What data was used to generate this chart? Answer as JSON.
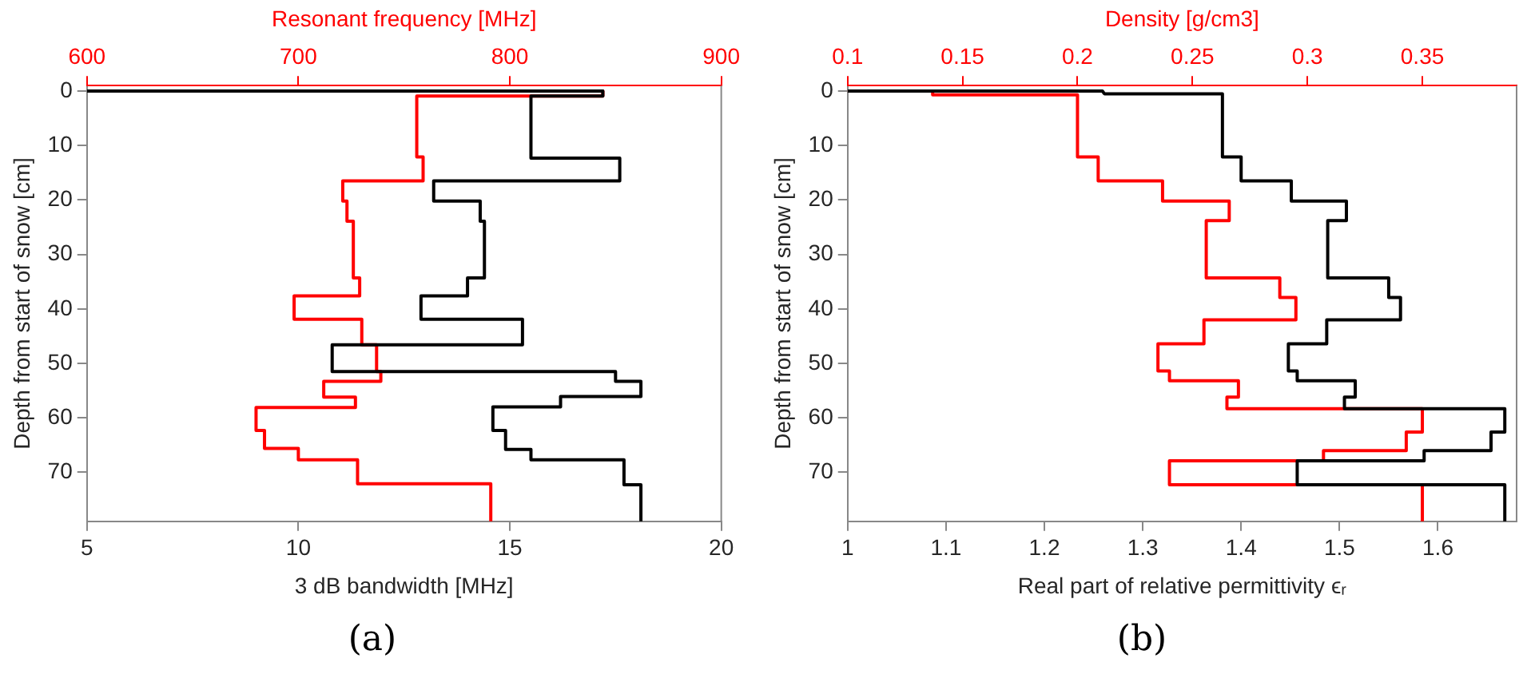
{
  "chart_data": [
    {
      "type": "line",
      "xlabel": "3 dB bandwidth [MHz]",
      "x2label": "Resonant frequency [MHz]",
      "ylabel": "Depth from start of snow [cm]",
      "xlim": [
        5,
        20
      ],
      "xticks": [
        5,
        10,
        15,
        20
      ],
      "x2lim": [
        600,
        900
      ],
      "x2ticks": [
        600,
        700,
        800,
        900
      ],
      "ylim": [
        79,
        -1
      ],
      "yticks": [
        0,
        10,
        20,
        30,
        40,
        50,
        60,
        70
      ],
      "marker": "none",
      "annotations": [
        "(a)"
      ],
      "series": [
        {
          "color": "#000000",
          "x": [
            5,
            17.2,
            17.2,
            15.5,
            15.5,
            17.6,
            17.6,
            13.2,
            13.2,
            14.3,
            14.3,
            14.4,
            14.4,
            14.0,
            14.0,
            12.9,
            12.9,
            15.3,
            15.3,
            10.8,
            10.8,
            17.5,
            17.5,
            18.1,
            18.1,
            16.2,
            16.2,
            14.6,
            14.6,
            14.9,
            14.9,
            15.5,
            15.5,
            17.7,
            17.7,
            18.1,
            18.1
          ],
          "values": [
            0,
            0,
            0.9,
            0.9,
            12.3,
            12.3,
            16.5,
            16.5,
            20.2,
            20.2,
            23.9,
            23.9,
            34.3,
            34.3,
            37.6,
            37.6,
            41.9,
            41.9,
            46.6,
            46.6,
            51.5,
            51.5,
            53.3,
            53.3,
            56.1,
            56.1,
            58.0,
            58.0,
            62.3,
            62.3,
            65.8,
            65.8,
            67.7,
            67.7,
            72.3,
            72.3,
            79
          ]
        },
        {
          "color": "#ff0000",
          "axis": "x2",
          "x": [
            844,
            844,
            756,
            756,
            759,
            759,
            721,
            721,
            723,
            723,
            726,
            726,
            729,
            729,
            698,
            698,
            730,
            730,
            737,
            737,
            739,
            739,
            712,
            712,
            727,
            727,
            680,
            680,
            684,
            684,
            700,
            700,
            728,
            728,
            791,
            791
          ],
          "values": [
            0,
            0.9,
            0.9,
            12.1,
            12.1,
            16.5,
            16.5,
            20.2,
            20.2,
            23.9,
            23.9,
            34.3,
            34.3,
            37.6,
            37.6,
            41.9,
            41.9,
            46.6,
            46.6,
            51.5,
            51.5,
            53.3,
            53.3,
            56.2,
            56.2,
            58.1,
            58.1,
            62.3,
            62.3,
            65.6,
            65.6,
            67.7,
            67.7,
            72.1,
            72.1,
            79
          ]
        }
      ]
    },
    {
      "type": "line",
      "xlabel": "Real part of relative permittivity ϵᵣ",
      "x2label": "Density [g/cm3]",
      "ylabel": "Depth from start of snow [cm]",
      "xlim": [
        1,
        1.68
      ],
      "xticks": [
        1,
        1.1,
        1.2,
        1.3,
        1.4,
        1.5,
        1.6
      ],
      "x2lim": [
        0.1,
        0.391
      ],
      "x2ticks": [
        0.1,
        0.15,
        0.2,
        0.25,
        0.3,
        0.35
      ],
      "ylim": [
        79,
        -1
      ],
      "yticks": [
        0,
        10,
        20,
        30,
        40,
        50,
        60,
        70
      ],
      "marker": "none",
      "annotations": [
        "(b)"
      ],
      "series": [
        {
          "color": "#000000",
          "x": [
            1,
            1.259,
            1.261,
            1.381,
            1.381,
            1.4,
            1.4,
            1.451,
            1.451,
            1.507,
            1.507,
            1.488,
            1.488,
            1.55,
            1.55,
            1.562,
            1.562,
            1.487,
            1.487,
            1.448,
            1.448,
            1.457,
            1.457,
            1.516,
            1.516,
            1.505,
            1.505,
            1.668,
            1.668,
            1.654,
            1.654,
            1.586,
            1.586,
            1.457,
            1.457,
            1.668,
            1.668
          ],
          "values": [
            0,
            0,
            0.5,
            0.5,
            12.1,
            12.1,
            16.5,
            16.5,
            20.2,
            20.2,
            23.8,
            23.8,
            34.3,
            34.3,
            37.9,
            37.9,
            42.0,
            42.0,
            46.4,
            46.4,
            51.4,
            51.4,
            53.2,
            53.2,
            56.2,
            56.2,
            58.3,
            58.3,
            62.6,
            62.6,
            66.0,
            66.0,
            67.9,
            67.9,
            72.3,
            72.3,
            79
          ]
        },
        {
          "color": "#ff0000",
          "axis": "x2",
          "x": [
            0.1,
            0.137,
            0.137,
            0.2,
            0.2,
            0.209,
            0.209,
            0.237,
            0.237,
            0.266,
            0.266,
            0.256,
            0.256,
            0.288,
            0.288,
            0.295,
            0.295,
            0.255,
            0.255,
            0.235,
            0.235,
            0.24,
            0.24,
            0.27,
            0.27,
            0.265,
            0.265,
            0.35,
            0.35,
            0.343,
            0.343,
            0.307,
            0.307,
            0.24,
            0.24,
            0.35,
            0.35
          ],
          "values": [
            0,
            0,
            0.7,
            0.7,
            12.1,
            12.1,
            16.5,
            16.5,
            20.2,
            20.2,
            23.8,
            23.8,
            34.3,
            34.3,
            37.9,
            37.9,
            42.0,
            42.0,
            46.4,
            46.4,
            51.4,
            51.4,
            53.2,
            53.2,
            56.2,
            56.2,
            58.3,
            58.3,
            62.6,
            62.6,
            66.0,
            66.0,
            67.9,
            67.9,
            72.3,
            72.3,
            79
          ]
        }
      ]
    }
  ]
}
